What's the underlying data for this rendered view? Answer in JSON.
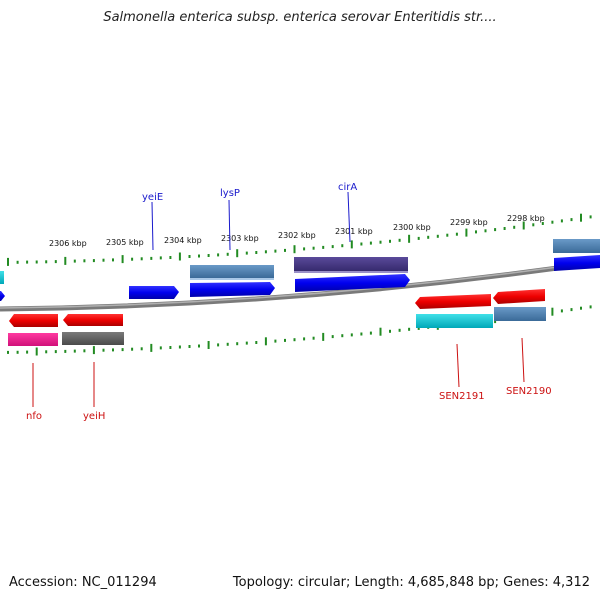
{
  "title": "Salmonella enterica subsp. enterica serovar Enteritidis str....",
  "footer": {
    "accession": "Accession: NC_011294",
    "topology": "Topology: circular; Length: 4,685,848 bp; Genes: 4,312"
  },
  "colors": {
    "upper_label": "#1a1acc",
    "lower_label": "#cc1111",
    "backbone": "#808080",
    "ticks": "#228b22"
  },
  "kbp_labels": [
    "2306 kbp",
    "2305 kbp",
    "2304 kbp",
    "2303 kbp",
    "2302 kbp",
    "2301 kbp",
    "2300 kbp",
    "2299 kbp",
    "2298 kbp"
  ],
  "genes_upper": [
    "yeiE",
    "lysP",
    "cirA"
  ],
  "genes_lower": [
    "nfo",
    "yeiH",
    "SEN2191",
    "SEN2190"
  ]
}
